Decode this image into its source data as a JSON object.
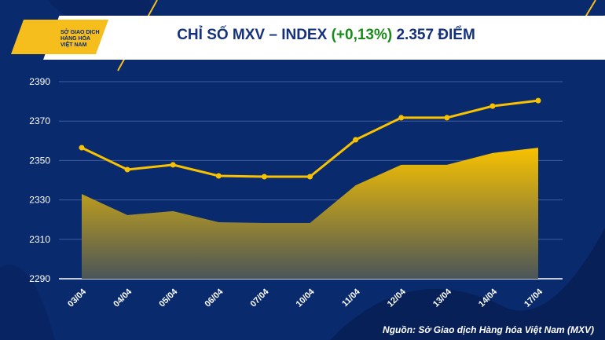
{
  "header": {
    "logo_text": [
      "SỞ GIAO DỊCH",
      "HÀNG HÓA",
      "VIỆT NAM"
    ],
    "title_prefix": "CHỈ SỐ MXV – INDEX",
    "title_change": "(+0,13%)",
    "title_suffix": "2.357 ĐIỂM"
  },
  "source": "Nguồn: Sở Giao dịch Hàng hóa Việt Nam (MXV)",
  "colors": {
    "background": "#0a2a6e",
    "accent": "#f5be1d",
    "positive": "#1a8a1a"
  },
  "chart_data": {
    "type": "line",
    "categories": [
      "03/04",
      "04/04",
      "05/04",
      "06/04",
      "07/04",
      "10/04",
      "11/04",
      "12/04",
      "13/04",
      "14/04",
      "17/04"
    ],
    "series": [
      {
        "type": "line",
        "values": [
          2356.5,
          2345.4,
          2347.8,
          2342.2,
          2341.8,
          2341.8,
          2360.5,
          2371.7,
          2371.7,
          2377.6,
          2380.4
        ]
      },
      {
        "type": "area",
        "values": [
          2333,
          2322.3,
          2324.3,
          2318.7,
          2318.3,
          2318.3,
          2337.4,
          2347.8,
          2347.8,
          2353.8,
          2356.5
        ]
      }
    ],
    "yticks": [
      2290,
      2310,
      2330,
      2350,
      2370,
      2390
    ],
    "ylim": [
      2290,
      2390
    ],
    "grid": true
  }
}
